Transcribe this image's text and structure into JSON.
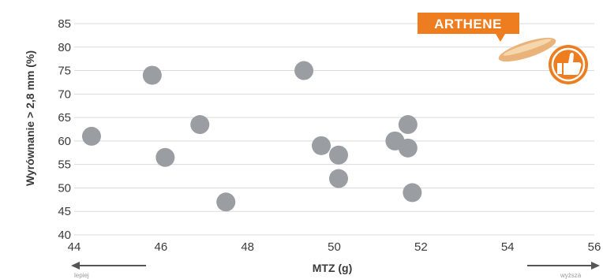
{
  "chart_data": {
    "type": "scatter",
    "title": "",
    "xlabel": "MTZ (g)",
    "ylabel": "Wyrównanie > 2,8 mm (%)",
    "xlim": [
      44,
      56
    ],
    "ylim": [
      40,
      85
    ],
    "x_ticks": [
      44,
      46,
      48,
      50,
      52,
      54,
      56
    ],
    "y_ticks": [
      40,
      45,
      50,
      55,
      60,
      65,
      70,
      75,
      80,
      85
    ],
    "grid": true,
    "point_color": "#9a9ea3",
    "grid_color": "#d9d9d9",
    "points": [
      {
        "x": 44.4,
        "y": 61
      },
      {
        "x": 45.8,
        "y": 74
      },
      {
        "x": 46.1,
        "y": 56.5
      },
      {
        "x": 46.9,
        "y": 63.5
      },
      {
        "x": 47.5,
        "y": 47
      },
      {
        "x": 49.3,
        "y": 75
      },
      {
        "x": 49.7,
        "y": 59
      },
      {
        "x": 50.1,
        "y": 57
      },
      {
        "x": 50.1,
        "y": 52
      },
      {
        "x": 51.4,
        "y": 60
      },
      {
        "x": 51.7,
        "y": 63.5
      },
      {
        "x": 51.7,
        "y": 58.5
      },
      {
        "x": 51.8,
        "y": 49
      }
    ],
    "annotation": {
      "label": "ARTHENE",
      "color": "#ee7d1f",
      "icon": "thumbs-up-icon"
    },
    "arrow_labels": {
      "left": "lepiej",
      "right": "wyższa"
    }
  }
}
